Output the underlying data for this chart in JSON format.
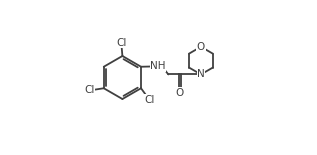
{
  "bg_color": "#ffffff",
  "line_color": "#404040",
  "lw": 1.3,
  "fs": 7.5,
  "figsize": [
    3.17,
    1.55
  ],
  "dpi": 100,
  "xlim": [
    0.0,
    1.0
  ],
  "ylim": [
    0.0,
    1.0
  ]
}
